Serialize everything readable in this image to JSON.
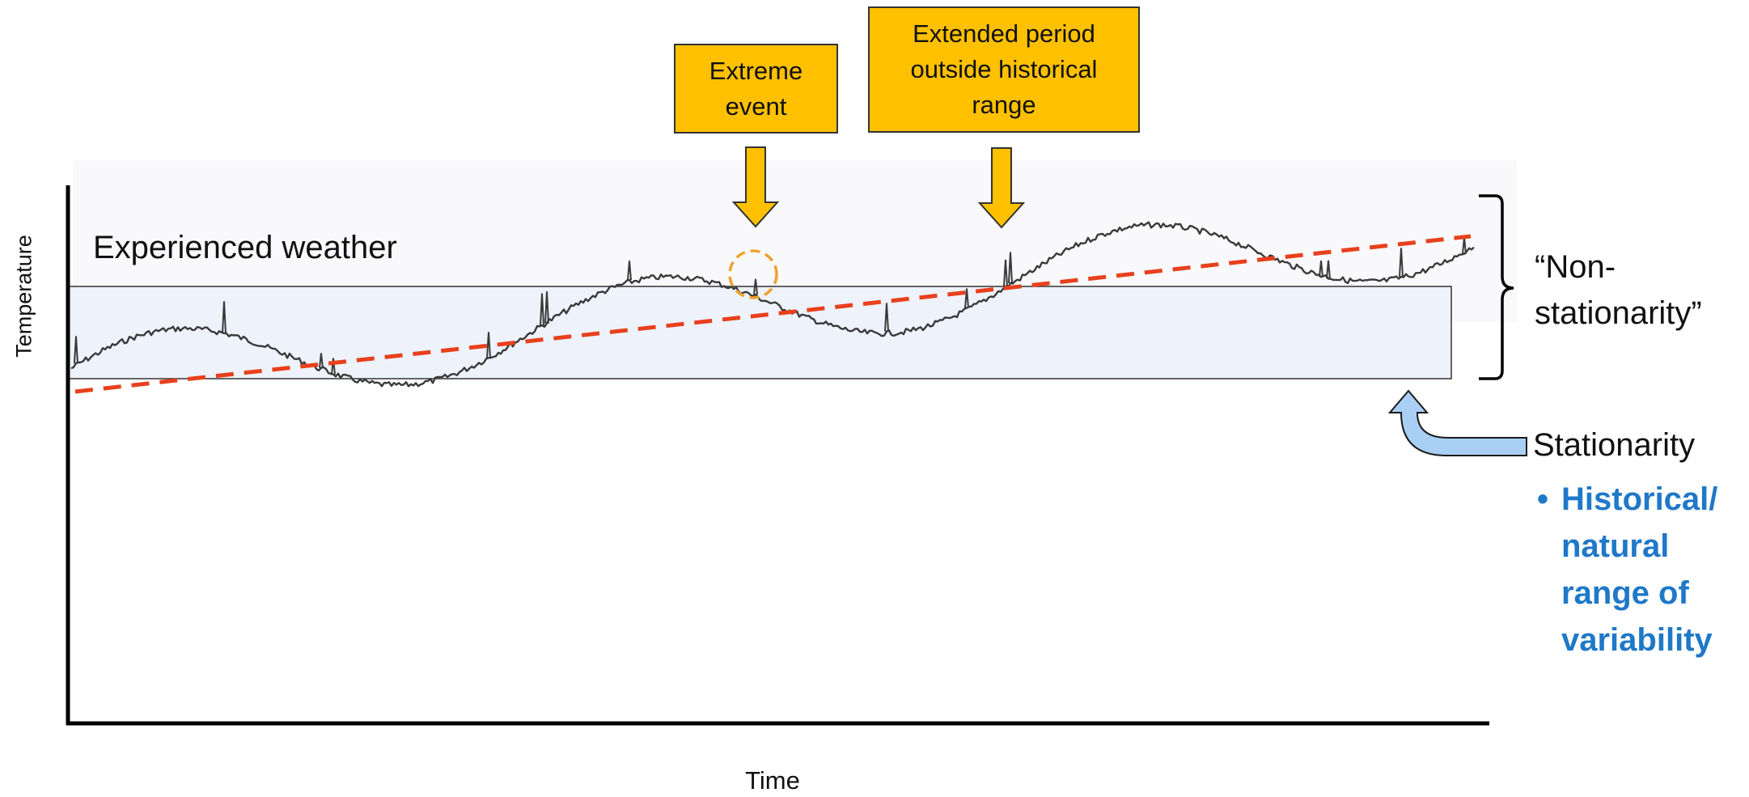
{
  "diagram": {
    "y_axis_label": "Temperature",
    "x_axis_label": "Time",
    "series_label": "Experienced weather",
    "callouts": {
      "extreme_event": [
        "Extreme",
        "event"
      ],
      "extended_period": [
        "Extended period",
        "outside historical",
        "range"
      ]
    },
    "non_stationarity_label": [
      "“Non-",
      "stationarity”"
    ],
    "stationarity_label": "Stationarity",
    "stationarity_bullet": {
      "marker": "•",
      "lines": [
        "Historical/",
        "natural",
        "range of",
        "variability"
      ]
    },
    "colors": {
      "callout_fill": "#FFC000",
      "trend_line": "#E8401C",
      "band_fill": "#EEF3FB",
      "arrow_blue": "#A9CFF5",
      "bullet_text": "#1F78C8",
      "extreme_circle": "#F0A030"
    },
    "icons": [
      "down-arrow-icon",
      "curved-up-arrow-icon",
      "right-brace-icon"
    ]
  }
}
